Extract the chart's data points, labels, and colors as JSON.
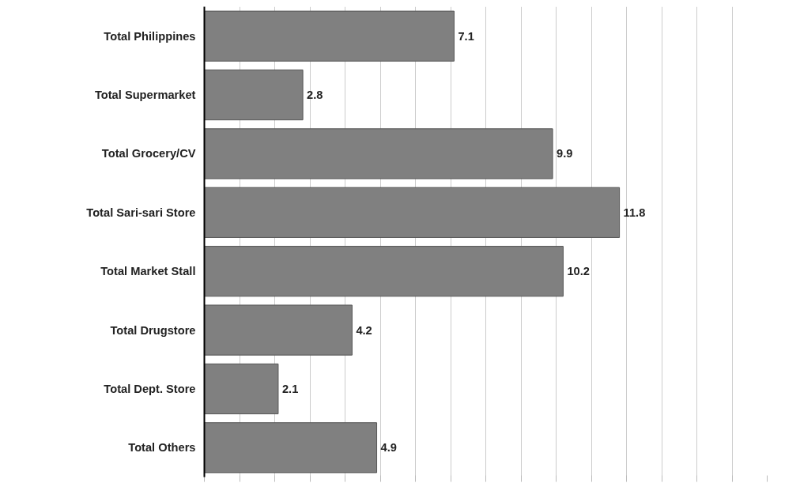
{
  "chart_data": {
    "type": "bar",
    "orientation": "horizontal",
    "categories": [
      "Total Philippines",
      "Total Supermarket",
      "Total Grocery/CV",
      "Total Sari-sari Store",
      "Total Market Stall",
      "Total Drugstore",
      "Total Dept. Store",
      "Total Others"
    ],
    "values": [
      7.1,
      2.8,
      9.9,
      11.8,
      10.2,
      4.2,
      2.1,
      4.9
    ],
    "color": "#808080",
    "data_labels": true,
    "xticks": [
      {
        "value": 0,
        "label": null
      },
      {
        "value": 1,
        "label": null
      },
      {
        "value": 2,
        "label": null
      },
      {
        "value": 3,
        "label": null
      },
      {
        "value": 4,
        "label": null
      },
      {
        "value": 5,
        "label": null
      },
      {
        "value": 6,
        "label": null
      },
      {
        "value": 7,
        "label": null
      },
      {
        "value": 8,
        "label": null
      },
      {
        "value": 9,
        "label": null
      },
      {
        "value": 10,
        "label": null
      },
      {
        "value": 11,
        "label": null
      },
      {
        "value": 12,
        "label": null
      },
      {
        "value": 13,
        "label": null
      },
      {
        "value": 14,
        "label": null
      },
      {
        "value": 15,
        "label": null
      },
      {
        "value": 16,
        "label": null
      }
    ],
    "tick_labels": "y",
    "grid": "x"
  }
}
